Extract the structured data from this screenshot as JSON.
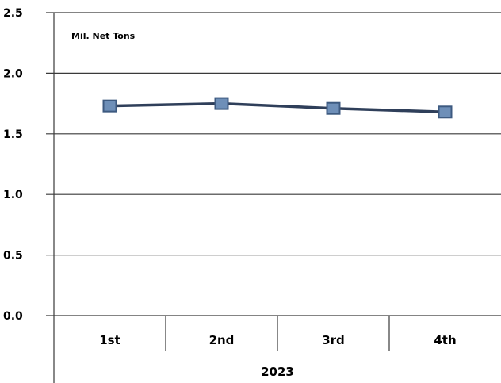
{
  "chart_data": {
    "type": "line",
    "unit_label": "Mil. Net Tons",
    "group_label": "2023",
    "categories": [
      "1st",
      "2nd",
      "3rd",
      "4th"
    ],
    "series": [
      {
        "values": [
          1.73,
          1.75,
          1.71,
          1.68
        ]
      }
    ],
    "y_ticks": [
      "0.0",
      "0.5",
      "1.0",
      "1.5",
      "2.0",
      "2.5"
    ],
    "ylim": [
      0,
      2.5
    ],
    "grid": true,
    "legend": "none",
    "colors": {
      "line": "#2f3f5a",
      "marker_fill": "#6e8fb8",
      "marker_stroke": "#3d5a80"
    }
  }
}
